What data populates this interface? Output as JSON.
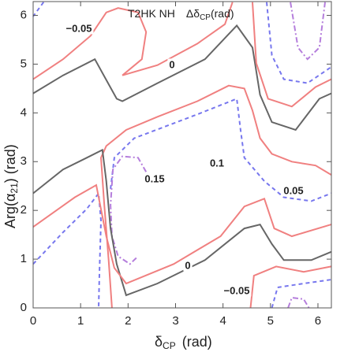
{
  "chart_data": {
    "type": "contour",
    "title": {
      "main": "T2HK NH",
      "symbol": "Δδ",
      "sub": "CP",
      "unit": "(rad)"
    },
    "x_label": {
      "symbol": "δ",
      "sub": "CP",
      "unit": "(rad)"
    },
    "y_label": {
      "main": "Arg(α",
      "sub": "21",
      "unit": ")  (rad)"
    },
    "xlim": [
      0,
      6.283
    ],
    "ylim": [
      0,
      6.283
    ],
    "xticks": [
      0,
      1,
      2,
      3,
      4,
      5,
      6
    ],
    "yticks": [
      0,
      1,
      2,
      3,
      4,
      5,
      6
    ],
    "level_styles": [
      {
        "level": 0,
        "color": "#666666",
        "dash": "solid"
      },
      {
        "level": 0.05,
        "color": "#f08080",
        "dash": "solid"
      },
      {
        "level": 0.1,
        "color": "#7777ee",
        "dash": "dashed"
      },
      {
        "level": 0.15,
        "color": "#b57edc",
        "dash": "dashdot"
      }
    ],
    "contours": [
      {
        "level": 0,
        "x": [
          0,
          0.63,
          1.3,
          1.76,
          1.88,
          2.62,
          3.62,
          4.29,
          4.62,
          4.78,
          5.03,
          5.53,
          6.03,
          6.28
        ],
        "y": [
          4.4,
          4.77,
          5.1,
          4.29,
          4.24,
          4.61,
          5.1,
          5.79,
          5.34,
          4.37,
          3.81,
          3.65,
          4.29,
          4.4
        ]
      },
      {
        "level": -0.05,
        "x": [
          0,
          0.63,
          1.21,
          1.54,
          1.79,
          2.21,
          2.38,
          2.29,
          1.88,
          2.62,
          3.46,
          4.04,
          4.2
        ],
        "y": [
          4.69,
          5.1,
          5.58,
          6.06,
          6.15,
          6.06,
          5.66,
          5.1,
          4.77,
          4.98,
          5.42,
          5.82,
          6.27
        ]
      },
      {
        "level": -0.1,
        "x": [
          0.22,
          0
        ],
        "y": [
          6.27,
          5.98
        ]
      },
      {
        "level": -0.05,
        "x": [
          4.62,
          4.7,
          4.95,
          5.45,
          5.95,
          6.28
        ],
        "y": [
          6.27,
          5.02,
          4.29,
          4.13,
          4.53,
          4.69
        ]
      },
      {
        "level": -0.1,
        "x": [
          4.92,
          5.03,
          5.28,
          5.78,
          6.28
        ],
        "y": [
          6.27,
          5.18,
          4.69,
          4.61,
          4.94
        ]
      },
      {
        "level": -0.15,
        "x": [
          5.42,
          5.58,
          5.78,
          6.03,
          6.15
        ],
        "y": [
          6.27,
          5.34,
          5.1,
          5.34,
          6.27
        ]
      },
      {
        "level": 0.05,
        "x": [
          6.28,
          5.95,
          5.45,
          5.03,
          4.78,
          4.62,
          4.45,
          4.12,
          3.46,
          2.62,
          1.96,
          1.54,
          1.43,
          1.5,
          1.59,
          1.66
        ],
        "y": [
          2.73,
          2.92,
          3.0,
          3.16,
          3.48,
          4.05,
          4.5,
          4.56,
          4.24,
          3.92,
          3.65,
          3.32,
          3.08,
          2.11,
          0.98,
          0
        ]
      },
      {
        "level": 0.1,
        "x": [
          1.63,
          1.71,
          2.13,
          3.46,
          4.29,
          4.37,
          4.45,
          4.87,
          5.28,
          5.86,
          6.28
        ],
        "y": [
          2.44,
          3.08,
          3.48,
          3.97,
          4.29,
          3.65,
          3.08,
          2.6,
          2.27,
          2.19,
          2.35
        ]
      },
      {
        "level": 0.1,
        "x": [
          0,
          0.63,
          1.13,
          1.38,
          1.43,
          1.4,
          1.38
        ],
        "y": [
          0.9,
          1.55,
          2.03,
          2.35,
          1.79,
          0.82,
          0
        ]
      },
      {
        "level": 0.15,
        "x": [
          2.38,
          2.21,
          1.88,
          1.68,
          1.63,
          1.66,
          1.79,
          2.04,
          2.21
        ],
        "y": [
          2.79,
          3.08,
          3.11,
          2.84,
          2.11,
          1.47,
          1.06,
          0.9,
          1.06
        ]
      },
      {
        "level": 0,
        "x": [
          0,
          0.63,
          1.13,
          1.46,
          1.54,
          1.63,
          1.76,
          1.96,
          2.62,
          3.62,
          4.45,
          4.78,
          5.03,
          5.28,
          5.86,
          6.28
        ],
        "y": [
          2.35,
          2.84,
          3.08,
          3.24,
          2.6,
          1.63,
          0.9,
          0.26,
          0.5,
          0.98,
          1.63,
          1.71,
          1.31,
          0.98,
          0.98,
          1.15
        ]
      },
      {
        "level": 0.05,
        "x": [
          0,
          0.88,
          1.33,
          1.54,
          1.71,
          1.96,
          2.96,
          3.95,
          4.45,
          4.87,
          5.08,
          5.45,
          6.28
        ],
        "y": [
          1.66,
          2.27,
          2.52,
          1.47,
          0.82,
          0.5,
          0.9,
          1.47,
          2.08,
          2.24,
          1.63,
          1.47,
          1.71
        ]
      },
      {
        "level": -0.05,
        "x": [
          4.58,
          4.65,
          5.12,
          5.7,
          6.28
        ],
        "y": [
          0,
          0.66,
          0.85,
          0.74,
          0.85
        ]
      },
      {
        "level": -0.1,
        "x": [
          5.03,
          5.15,
          5.7,
          6.28
        ],
        "y": [
          0,
          0.42,
          0.5,
          0.58
        ]
      },
      {
        "level": -0.15,
        "x": [
          5.37,
          5.45,
          5.7,
          5.81
        ],
        "y": [
          0,
          0.21,
          0.18,
          0
        ]
      }
    ],
    "contour_labels": [
      "−0.05",
      "0",
      "0.1",
      "0.15",
      "0.05",
      "0",
      "−0.05"
    ]
  }
}
